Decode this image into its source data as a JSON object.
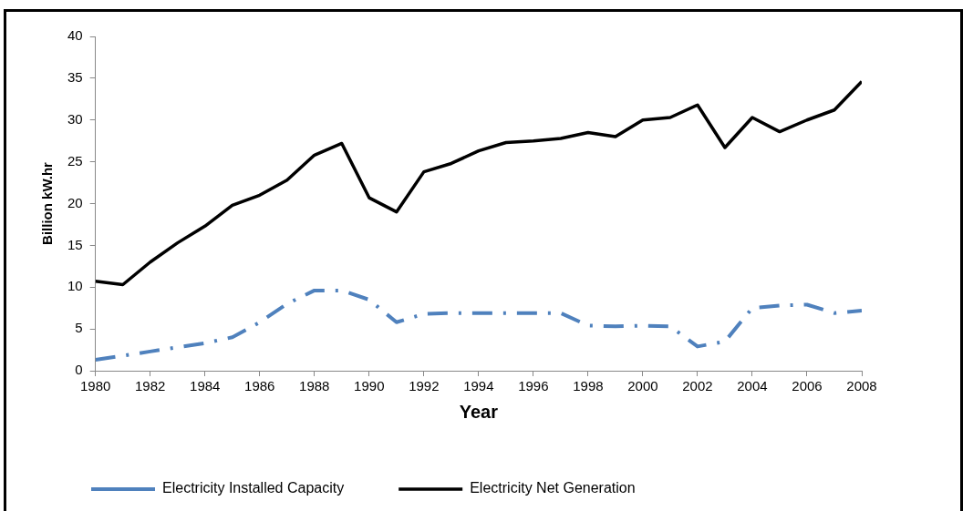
{
  "chart_data": {
    "type": "line",
    "xlabel": "Year",
    "ylabel": "Billion kW.hr",
    "x": [
      1980,
      1981,
      1982,
      1983,
      1984,
      1985,
      1986,
      1987,
      1988,
      1989,
      1990,
      1991,
      1992,
      1993,
      1994,
      1995,
      1996,
      1997,
      1998,
      1999,
      2000,
      2001,
      2002,
      2003,
      2004,
      2005,
      2006,
      2007,
      2008
    ],
    "series": [
      {
        "name": "Electricity Installed Capacity",
        "color": "#4f81bd",
        "line_style": "dashed",
        "values": [
          1.3,
          1.8,
          2.3,
          2.8,
          3.3,
          4,
          5.8,
          8,
          9.6,
          9.6,
          8.5,
          5.8,
          6.8,
          6.9,
          6.9,
          6.9,
          6.9,
          6.9,
          5.4,
          5.3,
          5.4,
          5.3,
          2.9,
          3.5,
          7.5,
          7.8,
          7.9,
          6.9,
          7.2
        ]
      },
      {
        "name": "Electricity Net Generation",
        "color": "#000000",
        "line_style": "solid",
        "values": [
          10.7,
          10.3,
          13,
          15.3,
          17.3,
          19.8,
          21,
          22.8,
          25.8,
          27.2,
          20.7,
          19,
          23.8,
          24.8,
          26.3,
          27.3,
          27.5,
          27.8,
          28.5,
          28,
          30,
          30.3,
          31.8,
          26.7,
          30.3,
          28.6,
          30,
          31.2,
          34.6
        ]
      }
    ],
    "xlim": [
      1980,
      2008
    ],
    "xticks": [
      1980,
      1982,
      1984,
      1986,
      1988,
      1990,
      1992,
      1994,
      1996,
      1998,
      2000,
      2002,
      2004,
      2006,
      2008
    ],
    "ylim": [
      0,
      40
    ],
    "yticks": [
      0,
      5,
      10,
      15,
      20,
      25,
      30,
      35,
      40
    ],
    "grid": false,
    "legend": "bottom",
    "marker": "none"
  }
}
